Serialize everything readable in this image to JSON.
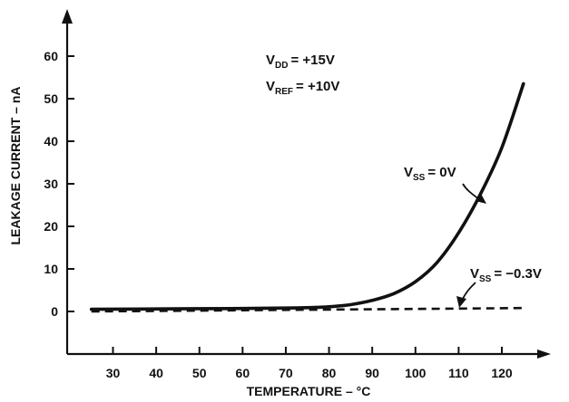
{
  "chart_data": {
    "type": "line",
    "title": "",
    "xlabel": "TEMPERATURE – °C",
    "ylabel": "LEAKAGE CURRENT – nA",
    "xlim": [
      20,
      130
    ],
    "ylim": [
      -10,
      70
    ],
    "x_ticks": [
      30,
      40,
      50,
      60,
      70,
      80,
      90,
      100,
      110,
      120
    ],
    "y_ticks": [
      0,
      10,
      20,
      30,
      40,
      50,
      60
    ],
    "grid": false,
    "conditions": [
      {
        "main": "V",
        "sub": "DD",
        "rest": "=  +15V"
      },
      {
        "main": "V",
        "sub": "REF",
        "rest": "=  +10V"
      }
    ],
    "series": [
      {
        "name_main": "V",
        "name_sub": "SS",
        "name_rest": "=  0V",
        "style": "solid",
        "x": [
          25,
          40,
          60,
          70,
          75,
          80,
          85,
          90,
          95,
          100,
          105,
          110,
          115,
          120,
          125
        ],
        "y": [
          0.5,
          0.6,
          0.7,
          0.8,
          0.9,
          1.1,
          1.6,
          2.6,
          4.2,
          7.0,
          11.5,
          18.5,
          27.5,
          38.5,
          53.5
        ]
      },
      {
        "name_main": "V",
        "name_sub": "SS",
        "name_rest": "=  −0.3V",
        "style": "dashed",
        "x": [
          25,
          50,
          75,
          100,
          125
        ],
        "y": [
          0.0,
          0.2,
          0.4,
          0.6,
          0.8
        ]
      }
    ]
  }
}
